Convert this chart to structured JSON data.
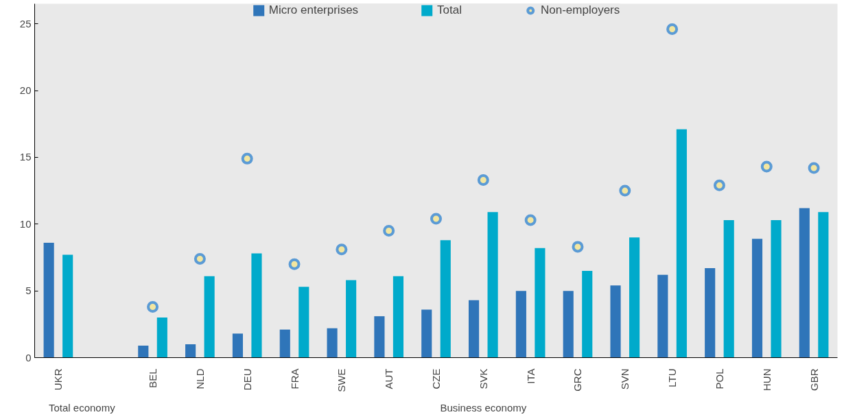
{
  "chart_data": {
    "type": "bar",
    "categories": [
      "UKR",
      null,
      "BEL",
      "NLD",
      "DEU",
      "FRA",
      "SWE",
      "AUT",
      "CZE",
      "SVK",
      "ITA",
      "GRC",
      "SVN",
      "LTU",
      "POL",
      "HUN",
      "GBR"
    ],
    "series": [
      {
        "name": "Micro enterprises",
        "color": "#2f75b9",
        "values": [
          8.6,
          null,
          0.9,
          1.0,
          1.8,
          2.1,
          2.2,
          3.1,
          3.6,
          4.3,
          5.0,
          5.0,
          5.4,
          6.2,
          6.7,
          8.9,
          11.2
        ]
      },
      {
        "name": "Total",
        "color": "#00aacb",
        "values": [
          7.7,
          null,
          3.0,
          6.1,
          7.8,
          5.3,
          5.8,
          6.1,
          8.8,
          10.9,
          8.2,
          6.5,
          9.0,
          17.1,
          10.3,
          10.3,
          10.9
        ]
      },
      {
        "name": "Non-employers",
        "type": "scatter",
        "color": "#f3e6a0",
        "values": [
          null,
          null,
          3.8,
          7.4,
          14.9,
          7.0,
          8.1,
          9.5,
          10.4,
          13.3,
          10.3,
          8.3,
          12.5,
          24.6,
          12.9,
          14.3,
          14.2
        ]
      }
    ],
    "annotations": [
      "Total economy",
      "Business economy"
    ],
    "ylim": [
      0,
      26.5
    ],
    "yticks": [
      0,
      5,
      10,
      15,
      20,
      25
    ],
    "grid": false,
    "legend": "top",
    "marker": "circle"
  }
}
